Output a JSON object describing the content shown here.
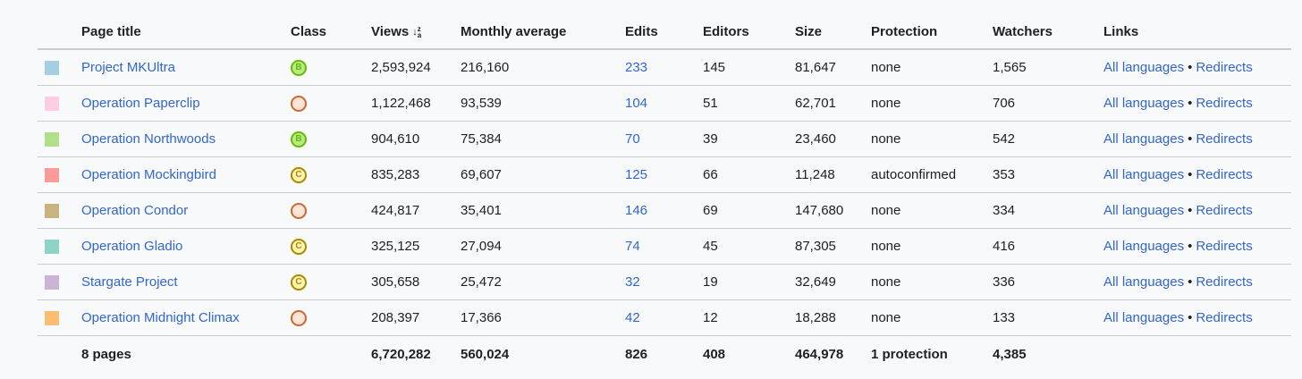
{
  "headers": {
    "title": "Page title",
    "class": "Class",
    "views": "Views",
    "monthly": "Monthly average",
    "edits": "Edits",
    "editors": "Editors",
    "size": "Size",
    "protection": "Protection",
    "watchers": "Watchers",
    "links": "Links"
  },
  "sort_icon": "sort-descending-icon",
  "rows": [
    {
      "title": "Project MKUltra",
      "swatch": "#a6cee3",
      "class_letter": "B",
      "class_color": "#66bb00",
      "class_fill": "#b8e986",
      "views": "2,593,924",
      "monthly": "216,160",
      "edits": "233",
      "editors": "145",
      "size": "81,647",
      "protection": "none",
      "watchers": "1,565",
      "link1": "All languages",
      "link2": "Redirects"
    },
    {
      "title": "Operation Paperclip",
      "swatch": "#fccde5",
      "class_letter": "",
      "class_color": "#cc6633",
      "class_fill": "#fde4d6",
      "views": "1,122,468",
      "monthly": "93,539",
      "edits": "104",
      "editors": "51",
      "size": "62,701",
      "protection": "none",
      "watchers": "706",
      "link1": "All languages",
      "link2": "Redirects"
    },
    {
      "title": "Operation Northwoods",
      "swatch": "#b2df8a",
      "class_letter": "B",
      "class_color": "#66bb00",
      "class_fill": "#b8e986",
      "views": "904,610",
      "monthly": "75,384",
      "edits": "70",
      "editors": "39",
      "size": "23,460",
      "protection": "none",
      "watchers": "542",
      "link1": "All languages",
      "link2": "Redirects"
    },
    {
      "title": "Operation Mockingbird",
      "swatch": "#fb9a99",
      "class_letter": "C",
      "class_color": "#aa8800",
      "class_fill": "#fff5b0",
      "views": "835,283",
      "monthly": "69,607",
      "edits": "125",
      "editors": "66",
      "size": "11,248",
      "protection": "autoconfirmed",
      "watchers": "353",
      "link1": "All languages",
      "link2": "Redirects"
    },
    {
      "title": "Operation Condor",
      "swatch": "#cab281",
      "class_letter": "",
      "class_color": "#cc6633",
      "class_fill": "#fde4d6",
      "views": "424,817",
      "monthly": "35,401",
      "edits": "146",
      "editors": "69",
      "size": "147,680",
      "protection": "none",
      "watchers": "334",
      "link1": "All languages",
      "link2": "Redirects"
    },
    {
      "title": "Operation Gladio",
      "swatch": "#8dd3c7",
      "class_letter": "C",
      "class_color": "#aa8800",
      "class_fill": "#fff5b0",
      "views": "325,125",
      "monthly": "27,094",
      "edits": "74",
      "editors": "45",
      "size": "87,305",
      "protection": "none",
      "watchers": "416",
      "link1": "All languages",
      "link2": "Redirects"
    },
    {
      "title": "Stargate Project",
      "swatch": "#c9b3d6",
      "class_letter": "C",
      "class_color": "#aa8800",
      "class_fill": "#fff5b0",
      "views": "305,658",
      "monthly": "25,472",
      "edits": "32",
      "editors": "19",
      "size": "32,649",
      "protection": "none",
      "watchers": "336",
      "link1": "All languages",
      "link2": "Redirects"
    },
    {
      "title": "Operation Midnight Climax",
      "swatch": "#fdbf6f",
      "class_letter": "",
      "class_color": "#cc6633",
      "class_fill": "#fde4d6",
      "views": "208,397",
      "monthly": "17,366",
      "edits": "42",
      "editors": "12",
      "size": "18,288",
      "protection": "none",
      "watchers": "133",
      "link1": "All languages",
      "link2": "Redirects"
    }
  ],
  "link_separator": "•",
  "totals": {
    "title": "8 pages",
    "views": "6,720,282",
    "monthly": "560,024",
    "edits": "826",
    "editors": "408",
    "size": "464,978",
    "protection": "1 protection",
    "watchers": "4,385"
  }
}
